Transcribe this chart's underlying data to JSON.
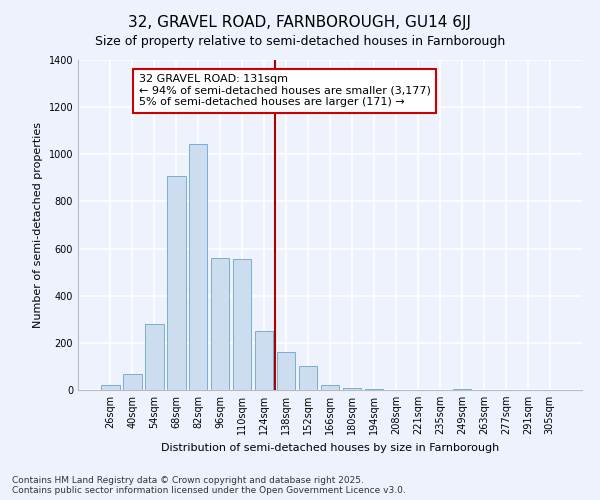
{
  "title": "32, GRAVEL ROAD, FARNBOROUGH, GU14 6JJ",
  "subtitle": "Size of property relative to semi-detached houses in Farnborough",
  "xlabel": "Distribution of semi-detached houses by size in Farnborough",
  "ylabel": "Number of semi-detached properties",
  "categories": [
    "26sqm",
    "40sqm",
    "54sqm",
    "68sqm",
    "82sqm",
    "96sqm",
    "110sqm",
    "124sqm",
    "138sqm",
    "152sqm",
    "166sqm",
    "180sqm",
    "194sqm",
    "208sqm",
    "221sqm",
    "235sqm",
    "249sqm",
    "263sqm",
    "277sqm",
    "291sqm",
    "305sqm"
  ],
  "values": [
    20,
    70,
    280,
    910,
    1045,
    560,
    555,
    250,
    160,
    100,
    20,
    10,
    5,
    0,
    0,
    0,
    5,
    0,
    0,
    0,
    0
  ],
  "bar_color": "#ccddf0",
  "bar_edge_color": "#7aaed0",
  "vline_color": "#aa0000",
  "annotation_box_edge_color": "#cc0000",
  "background_color": "#eef2fc",
  "grid_color": "#ffffff",
  "footer1": "Contains HM Land Registry data © Crown copyright and database right 2025.",
  "footer2": "Contains public sector information licensed under the Open Government Licence v3.0.",
  "ylim": [
    0,
    1400
  ],
  "yticks": [
    0,
    200,
    400,
    600,
    800,
    1000,
    1200,
    1400
  ],
  "title_fontsize": 11,
  "axis_label_fontsize": 8,
  "tick_fontsize": 7,
  "footer_fontsize": 6.5,
  "annotation_fontsize": 8,
  "property_sqm": 131,
  "vline_bar_index": 8,
  "annotation_text_line1": "32 GRAVEL ROAD: 131sqm",
  "annotation_text_line2": "← 94% of semi-detached houses are smaller (3,177)",
  "annotation_text_line3": "5% of semi-detached houses are larger (171) →"
}
